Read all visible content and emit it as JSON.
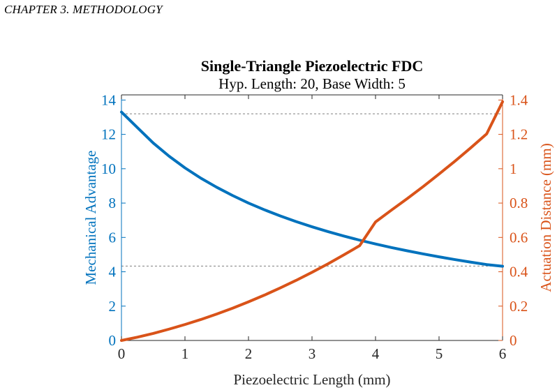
{
  "page_header": "CHAPTER 3.  METHODOLOGY",
  "colors": {
    "left_axis": "#0072BD",
    "right_axis": "#D95319",
    "axes": "#262626",
    "reference_lines": "#7f7f7f"
  },
  "chart_data": {
    "type": "line",
    "title": "Single-Triangle Piezoelectric FDC",
    "subtitle": "Hyp. Length: 20, Base Width: 5",
    "xlabel": "Piezoelectric Length (mm)",
    "ylabel_left": "Mechanical Advantage",
    "ylabel_right": "Actuation Distance (mm)",
    "xlim": [
      0,
      6
    ],
    "ylim_left": [
      0,
      14.3
    ],
    "ylim_right": [
      0,
      1.43
    ],
    "x_ticks": [
      "0",
      "1",
      "2",
      "3",
      "4",
      "5",
      "6"
    ],
    "y_left_ticks": [
      "0",
      "2",
      "4",
      "6",
      "8",
      "10",
      "12",
      "14"
    ],
    "y_right_ticks": [
      "0",
      "0.2",
      "0.4",
      "0.6",
      "0.8",
      "1",
      "1.2",
      "1.4"
    ],
    "grid": false,
    "reference_lines_left_axis": [
      13.2,
      4.33
    ],
    "series": [
      {
        "axis": "left",
        "x": [
          0,
          0.25,
          0.5,
          0.75,
          1,
          1.25,
          1.5,
          1.75,
          2,
          2.25,
          2.5,
          2.75,
          3,
          3.25,
          3.5,
          3.75,
          4,
          4.25,
          4.5,
          4.75,
          5,
          5.25,
          5.5,
          5.75,
          6
        ],
        "values": [
          13.3,
          12.4,
          11.5,
          10.73,
          10.05,
          9.45,
          8.92,
          8.44,
          8.0,
          7.61,
          7.25,
          6.92,
          6.62,
          6.34,
          6.08,
          5.84,
          5.62,
          5.41,
          5.22,
          5.04,
          4.87,
          4.71,
          4.56,
          4.42,
          4.32
        ]
      },
      {
        "axis": "right",
        "x": [
          0,
          0.25,
          0.5,
          0.75,
          1,
          1.25,
          1.5,
          1.75,
          2,
          2.25,
          2.5,
          2.75,
          3,
          3.25,
          3.5,
          3.75,
          4,
          4.25,
          4.5,
          4.75,
          5,
          5.25,
          5.5,
          5.75,
          6
        ],
        "values": [
          0,
          0.019,
          0.041,
          0.066,
          0.093,
          0.122,
          0.154,
          0.188,
          0.225,
          0.264,
          0.306,
          0.35,
          0.397,
          0.446,
          0.498,
          0.552,
          0.69,
          0.759,
          0.826,
          0.896,
          0.969,
          1.044,
          1.122,
          1.203,
          1.39
        ]
      }
    ]
  }
}
